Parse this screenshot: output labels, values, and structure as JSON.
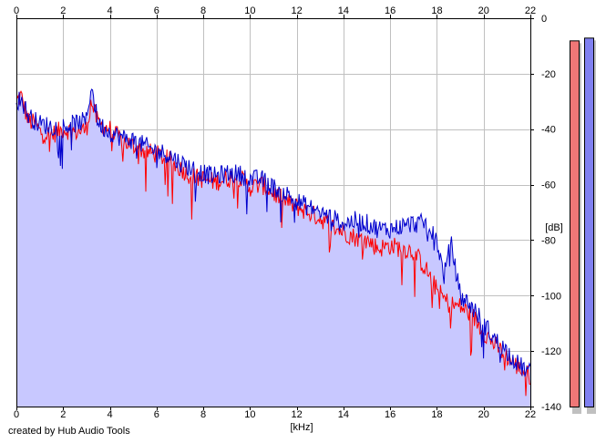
{
  "chart_data": {
    "type": "area",
    "xlabel": "[kHz]",
    "ylabel": "[dB]",
    "xlim": [
      0,
      22
    ],
    "ylim": [
      -140,
      0
    ],
    "x_ticks": [
      0,
      2,
      4,
      6,
      8,
      10,
      12,
      14,
      16,
      18,
      20,
      22
    ],
    "y_ticks": [
      0,
      -20,
      -40,
      -60,
      -80,
      -100,
      -120,
      -140
    ],
    "y_tick_labels": [
      "0",
      "-20",
      "-40",
      "-60",
      "-80",
      "-100",
      "-120",
      "-140"
    ],
    "grid": true,
    "series": [
      {
        "color": "#ff0000",
        "points": [
          [
            0,
            -30
          ],
          [
            0.2,
            -28
          ],
          [
            0.5,
            -37
          ],
          [
            0.8,
            -38
          ],
          [
            1,
            -41
          ],
          [
            1.5,
            -42
          ],
          [
            2,
            -40
          ],
          [
            2.5,
            -41
          ],
          [
            3,
            -40
          ],
          [
            3.2,
            -30
          ],
          [
            3.5,
            -38
          ],
          [
            4,
            -40
          ],
          [
            4.5,
            -44
          ],
          [
            5,
            -46
          ],
          [
            5.5,
            -48
          ],
          [
            6,
            -49
          ],
          [
            6.5,
            -51
          ],
          [
            7,
            -54
          ],
          [
            7.5,
            -57
          ],
          [
            8,
            -58
          ],
          [
            8.5,
            -59
          ],
          [
            9,
            -58
          ],
          [
            9.5,
            -57
          ],
          [
            10,
            -61
          ],
          [
            10.5,
            -60
          ],
          [
            11,
            -63
          ],
          [
            11.5,
            -66
          ],
          [
            12,
            -68
          ],
          [
            12.5,
            -70
          ],
          [
            13,
            -72
          ],
          [
            13.5,
            -75
          ],
          [
            14,
            -77
          ],
          [
            14.5,
            -79
          ],
          [
            15,
            -80
          ],
          [
            15.5,
            -83
          ],
          [
            16,
            -82
          ],
          [
            16.5,
            -83
          ],
          [
            17,
            -84
          ],
          [
            17.5,
            -90
          ],
          [
            18,
            -98
          ],
          [
            18.5,
            -103
          ],
          [
            19,
            -104
          ],
          [
            19.5,
            -107
          ],
          [
            20,
            -113
          ],
          [
            20.5,
            -118
          ],
          [
            21,
            -122
          ],
          [
            21.5,
            -126
          ],
          [
            22,
            -129
          ]
        ]
      },
      {
        "color": "#0000cc",
        "points": [
          [
            0,
            -30
          ],
          [
            0.2,
            -29
          ],
          [
            0.5,
            -35
          ],
          [
            0.8,
            -37
          ],
          [
            1,
            -38
          ],
          [
            1.5,
            -39
          ],
          [
            2,
            -39
          ],
          [
            2.5,
            -38
          ],
          [
            3,
            -37
          ],
          [
            3.2,
            -24
          ],
          [
            3.5,
            -38
          ],
          [
            4,
            -41
          ],
          [
            4.5,
            -43
          ],
          [
            5,
            -44
          ],
          [
            5.5,
            -46
          ],
          [
            6,
            -48
          ],
          [
            6.5,
            -49
          ],
          [
            7,
            -52
          ],
          [
            7.5,
            -54
          ],
          [
            8,
            -56
          ],
          [
            8.5,
            -57
          ],
          [
            9,
            -56
          ],
          [
            9.5,
            -56
          ],
          [
            10,
            -58
          ],
          [
            10.5,
            -58
          ],
          [
            11,
            -61
          ],
          [
            11.5,
            -63
          ],
          [
            12,
            -66
          ],
          [
            12.5,
            -68
          ],
          [
            13,
            -70
          ],
          [
            13.5,
            -72
          ],
          [
            14,
            -74
          ],
          [
            14.5,
            -73
          ],
          [
            15,
            -74
          ],
          [
            15.5,
            -76
          ],
          [
            16,
            -76
          ],
          [
            16.5,
            -75
          ],
          [
            17,
            -74
          ],
          [
            17.5,
            -74
          ],
          [
            18,
            -80
          ],
          [
            18.3,
            -93
          ],
          [
            18.6,
            -81
          ],
          [
            19,
            -100
          ],
          [
            19.5,
            -104
          ],
          [
            20,
            -110
          ],
          [
            20.5,
            -116
          ],
          [
            21,
            -120
          ],
          [
            21.5,
            -125
          ],
          [
            22,
            -128
          ]
        ]
      }
    ],
    "fill_color": "#c8c8ff",
    "meters": [
      {
        "color": "#ef7777",
        "level_db": -8
      },
      {
        "color": "#8080f0",
        "level_db": -7
      }
    ]
  },
  "footer": {
    "credit": "created by Hub Audio Tools"
  }
}
